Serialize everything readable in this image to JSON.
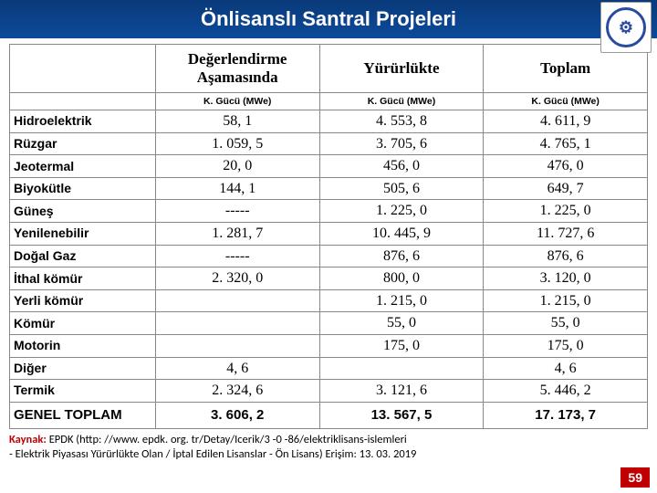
{
  "title": "Önlisanslı Santral Projeleri",
  "columns": {
    "c1": "Değerlendirme Aşamasında",
    "c2": "Yürürlükte",
    "c3": "Toplam",
    "sub": "K. Gücü (MWe)"
  },
  "rows": [
    {
      "label": "Hidroelektrik",
      "c1": "58, 1",
      "c2": "4. 553, 8",
      "c3": "4. 611, 9"
    },
    {
      "label": "Rüzgar",
      "c1": "1. 059, 5",
      "c2": "3. 705, 6",
      "c3": "4. 765, 1"
    },
    {
      "label": "Jeotermal",
      "c1": "20, 0",
      "c2": "456, 0",
      "c3": "476, 0"
    },
    {
      "label": "Biyokütle",
      "c1": "144, 1",
      "c2": "505, 6",
      "c3": "649, 7"
    },
    {
      "label": "Güneş",
      "c1": "-----",
      "c2": "1. 225, 0",
      "c3": "1. 225, 0"
    },
    {
      "label": "Yenilenebilir",
      "c1": "1. 281, 7",
      "c2": "10. 445, 9",
      "c3": "11. 727, 6"
    },
    {
      "label": "Doğal Gaz",
      "c1": "-----",
      "c2": "876, 6",
      "c3": "876, 6"
    },
    {
      "label": "İthal kömür",
      "c1": "2. 320, 0",
      "c2": "800, 0",
      "c3": "3. 120, 0"
    },
    {
      "label": "Yerli kömür",
      "c1": "",
      "c2": "1. 215, 0",
      "c3": "1. 215, 0"
    },
    {
      "label": "Kömür",
      "c1": "",
      "c2": "55, 0",
      "c3": "55, 0"
    },
    {
      "label": "Motorin",
      "c1": "",
      "c2": "175, 0",
      "c3": "175, 0"
    },
    {
      "label": "Diğer",
      "c1": "4, 6",
      "c2": "",
      "c3": "4, 6"
    },
    {
      "label": "Termik",
      "c1": "2. 324, 6",
      "c2": "3. 121, 6",
      "c3": "5. 446, 2"
    }
  ],
  "total": {
    "label": "GENEL TOPLAM",
    "c1": "3. 606, 2",
    "c2": "13. 567, 5",
    "c3": "17. 173, 7"
  },
  "source": {
    "label": "Kaynak:",
    "name": "EPDK",
    "url_text": "(http: //www. epdk. org. tr/Detay/Icerik/3 -0 -86/elektriklisans-islemleri",
    "line2": "- Elektrik Piyasası Yürürlükte Olan / İptal Edilen Lisanslar - Ön Lisans)   Erişim: 13. 03. 2019"
  },
  "page": "59"
}
